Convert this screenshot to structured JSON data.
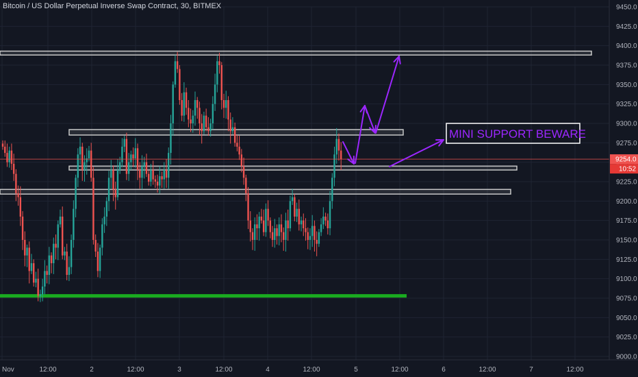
{
  "chart_title": "Bitcoin / US Dollar Perpetual Inverse Swap Contract, 30, BITMEX",
  "colors": {
    "background": "#131722",
    "up": "#26a69a",
    "down": "#ef5350",
    "grid": "#1f2433",
    "level_box": "#c8c8c8",
    "support": "#1aab20",
    "arrows": "#9c27ff",
    "price_tag": "#ef5350"
  },
  "chart_data": {
    "type": "candlestick",
    "symbol": "Bitcoin / US Dollar Perpetual Inverse Swap Contract",
    "timeframe": "30",
    "exchange": "BITMEX",
    "ylim": [
      9000,
      9450
    ],
    "y_ticks": [
      "9450.0",
      "9425.0",
      "9400.0",
      "9375.0",
      "9350.0",
      "9325.0",
      "9300.0",
      "9275.0",
      "9250.0",
      "9225.0",
      "9200.0",
      "9175.0",
      "9150.0",
      "9125.0",
      "9100.0",
      "9075.0",
      "9050.0",
      "9025.0",
      "9000.0"
    ],
    "x_ticks": [
      "Nov",
      "12:00",
      "2",
      "12:00",
      "3",
      "12:00",
      "4",
      "12:00",
      "5",
      "12:00",
      "6",
      "12:00",
      "7",
      "12:00"
    ],
    "current_price": "9254.0",
    "countdown": "10:52",
    "close_series": [
      9270,
      9262,
      9250,
      9265,
      9248,
      9235,
      9210,
      9205,
      9180,
      9150,
      9130,
      9140,
      9110,
      9120,
      9095,
      9100,
      9078,
      9080,
      9090,
      9110,
      9105,
      9130,
      9120,
      9145,
      9140,
      9170,
      9180,
      9130,
      9135,
      9105,
      9115,
      9150,
      9190,
      9230,
      9260,
      9270,
      9240,
      9250,
      9255,
      9265,
      9230,
      9150,
      9135,
      9110,
      9140,
      9170,
      9180,
      9200,
      9230,
      9240,
      9215,
      9205,
      9240,
      9250,
      9270,
      9280,
      9235,
      9250,
      9260,
      9255,
      9268,
      9240,
      9230,
      9245,
      9250,
      9235,
      9225,
      9240,
      9228,
      9225,
      9220,
      9232,
      9228,
      9240,
      9230,
      9262,
      9300,
      9350,
      9380,
      9370,
      9330,
      9310,
      9340,
      9320,
      9305,
      9300,
      9310,
      9330,
      9320,
      9300,
      9290,
      9310,
      9295,
      9290,
      9300,
      9325,
      9350,
      9380,
      9375,
      9330,
      9320,
      9330,
      9305,
      9290,
      9295,
      9275,
      9270,
      9260,
      9245,
      9230,
      9210,
      9175,
      9160,
      9150,
      9170,
      9165,
      9180,
      9175,
      9160,
      9190,
      9175,
      9160,
      9150,
      9165,
      9155,
      9170,
      9160,
      9150,
      9175,
      9165,
      9200,
      9205,
      9180,
      9190,
      9170,
      9175,
      9165,
      9160,
      9150,
      9155,
      9168,
      9150,
      9145,
      9160,
      9170,
      9180,
      9175,
      9165,
      9200,
      9230,
      9260,
      9280,
      9265,
      9254
    ],
    "levels": [
      {
        "price_from": 9388,
        "price_to": 9393
      },
      {
        "price_from": 9285,
        "price_to": 9292
      },
      {
        "price_from": 9240,
        "price_to": 9245
      },
      {
        "price_from": 9209,
        "price_to": 9215
      }
    ],
    "support_level": 9078,
    "annotations": [
      "MINI SUPPORT BEWARE"
    ]
  }
}
